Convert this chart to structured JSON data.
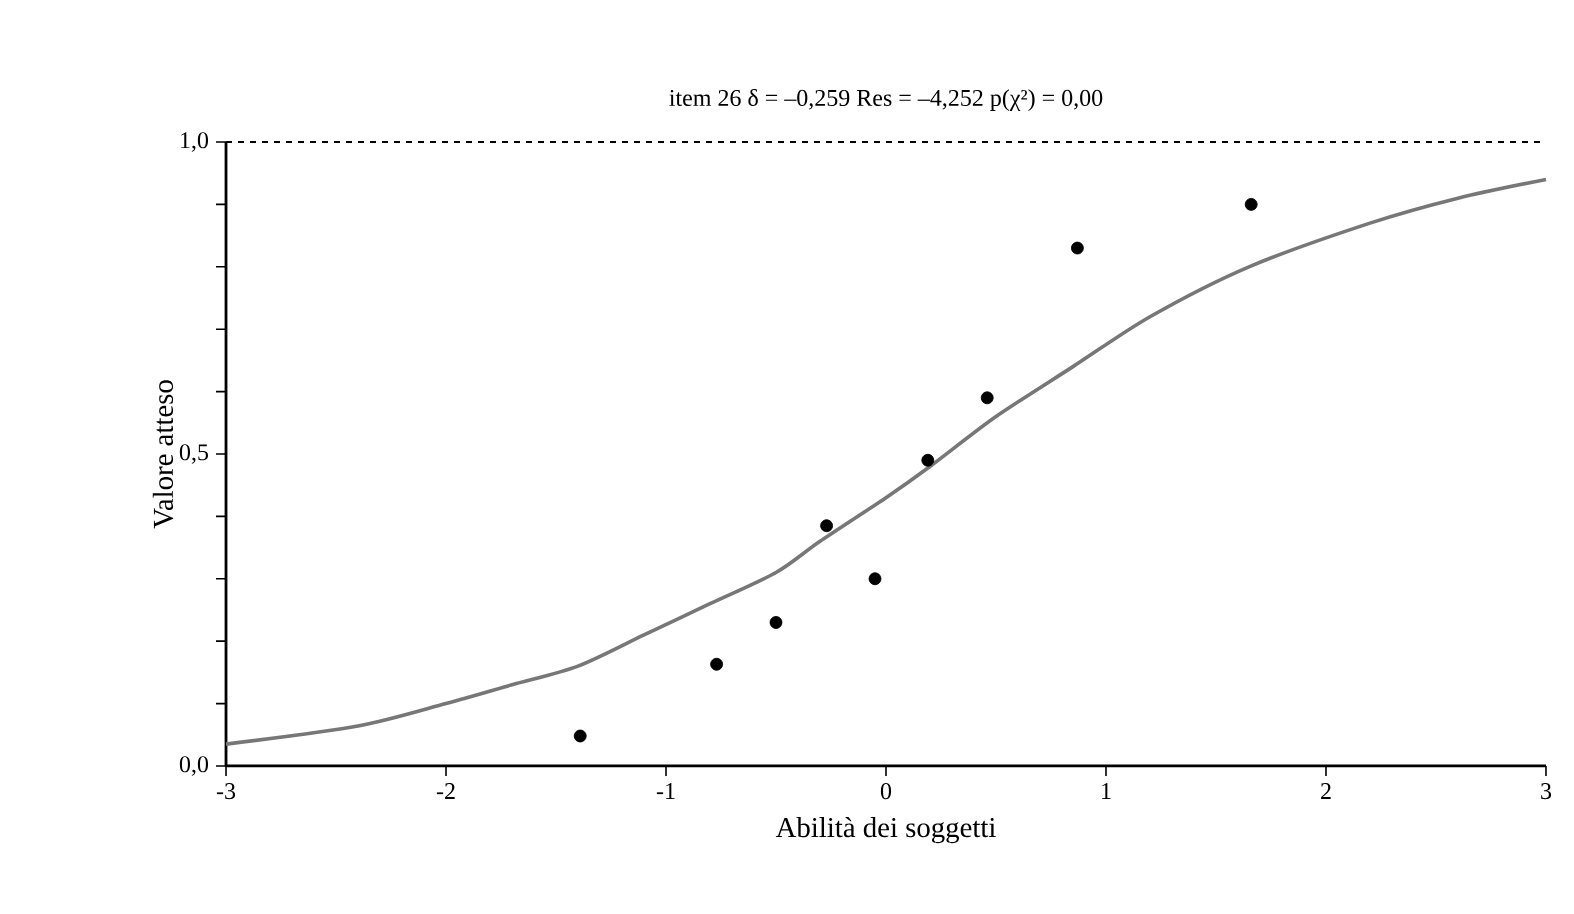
{
  "chart_data": {
    "type": "scatter",
    "title": "item 26     δ = –0,259     Res = –4,252     p(χ²)  = 0,00",
    "xlabel": "Abilità dei soggetti",
    "ylabel": "Valore atteso",
    "xlim": [
      -3,
      3
    ],
    "ylim": [
      0,
      1
    ],
    "xticks": [
      -3,
      -2,
      -1,
      0,
      1,
      2,
      3
    ],
    "yticks": [
      {
        "value": 0,
        "label": "0,0"
      },
      {
        "value": 0.1,
        "label": null
      },
      {
        "value": 0.2,
        "label": null
      },
      {
        "value": 0.3,
        "label": null
      },
      {
        "value": 0.4,
        "label": null
      },
      {
        "value": 0.5,
        "label": "0,5"
      },
      {
        "value": 0.6,
        "label": null
      },
      {
        "value": 0.7,
        "label": null
      },
      {
        "value": 0.8,
        "label": null
      },
      {
        "value": 0.9,
        "label": null
      },
      {
        "value": 1,
        "label": "1,0"
      }
    ],
    "ref_lines": [
      {
        "axis": "y",
        "value": 1,
        "line_style": "dashed",
        "color": "#000000"
      }
    ],
    "series": [
      {
        "type": "line",
        "color": "#777777",
        "marker": "none",
        "line_style": "solid",
        "x": [
          -3,
          -2.4,
          -2,
          -1.7,
          -1.4,
          -1.1,
          -0.8,
          -0.5,
          -0.3,
          0,
          0.2,
          0.5,
          0.85,
          1.2,
          1.65,
          2.2,
          2.6,
          3
        ],
        "values": [
          0.035,
          0.064,
          0.1,
          0.13,
          0.16,
          0.21,
          0.26,
          0.31,
          0.36,
          0.43,
          0.48,
          0.56,
          0.64,
          0.72,
          0.8,
          0.87,
          0.91,
          0.94
        ]
      },
      {
        "color": "#000000",
        "marker": "circle",
        "x": [
          -1.39,
          -0.77,
          -0.5,
          -0.27,
          -0.05,
          0.19,
          0.46,
          0.87,
          1.66
        ],
        "values": [
          0.048,
          0.163,
          0.23,
          0.385,
          0.3,
          0.49,
          0.59,
          0.83,
          0.9
        ]
      }
    ]
  }
}
